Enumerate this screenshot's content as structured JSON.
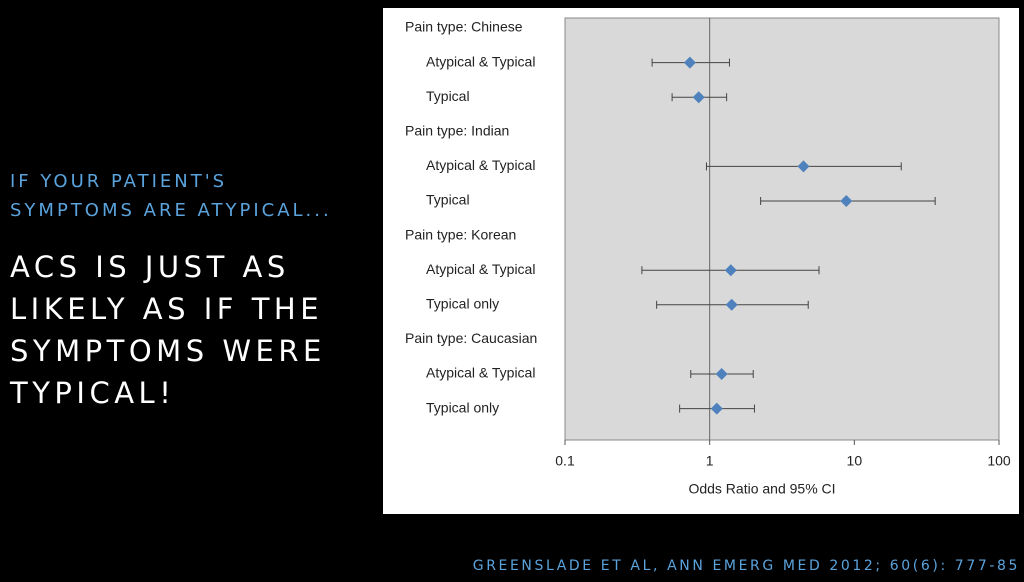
{
  "slide": {
    "subtitle_lines": [
      "IF YOUR PATIENT'S",
      "SYMPTOMS ARE ATYPICAL..."
    ],
    "headline_lines": [
      "ACS IS JUST AS",
      "LIKELY AS IF THE",
      "SYMPTOMS WERE",
      "TYPICAL!"
    ],
    "citation": "GREENSLADE ET AL, ANN EMERG MED 2012; 60(6): 777-85"
  },
  "chart_data": {
    "type": "forest",
    "x_label": "Odds Ratio and 95% CI",
    "categories": [
      "Pain type: Chinese",
      "Atypical & Typical",
      "Typical",
      "Pain type: Indian",
      "Atypical & Typical",
      "Typical",
      "Pain type: Korean",
      "Atypical & Typical",
      "Typical only",
      "Pain type: Caucasian",
      "Atypical & Typical",
      "Typical only"
    ],
    "values": [
      null,
      0.73,
      0.84,
      null,
      4.45,
      8.8,
      null,
      1.4,
      1.42,
      null,
      1.21,
      1.12
    ],
    "lower": [
      null,
      0.4,
      0.55,
      null,
      0.95,
      2.25,
      null,
      0.34,
      0.43,
      null,
      0.74,
      0.62
    ],
    "upper": [
      null,
      1.37,
      1.31,
      null,
      21.1,
      36.2,
      null,
      5.7,
      4.8,
      null,
      2.0,
      2.04
    ],
    "color": "#4f81bd",
    "x_log_scale": true,
    "xlim": [
      0.1,
      100
    ],
    "xticks": [
      0.1,
      1,
      10,
      100
    ],
    "reference_line": 1
  }
}
